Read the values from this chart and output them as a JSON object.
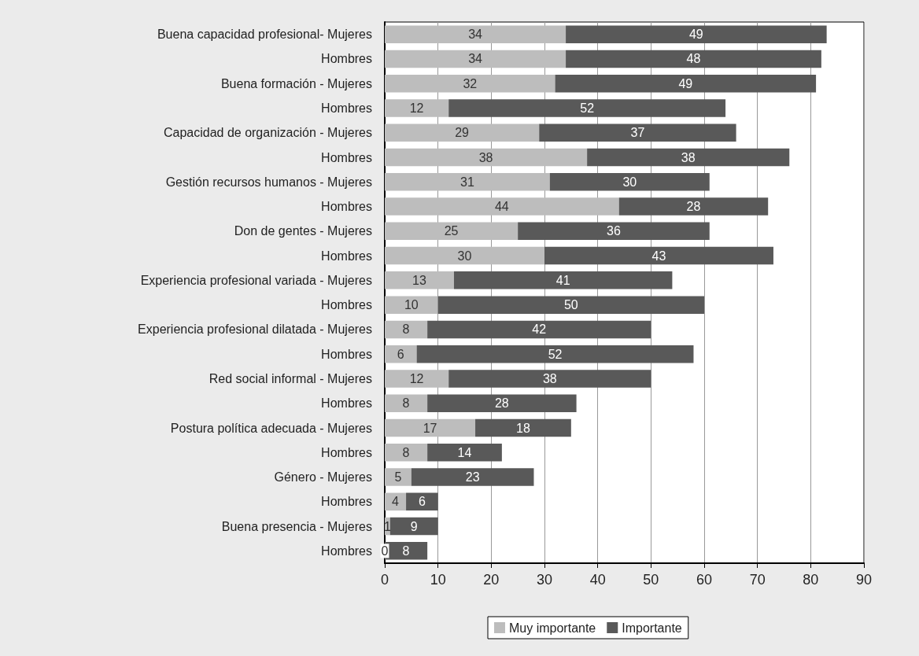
{
  "chart_data": {
    "type": "bar",
    "orientation": "horizontal",
    "stacked": true,
    "data_labels": true,
    "grid": "x",
    "legend": "bottom",
    "categories": [
      "Buena capacidad profesional- Mujeres",
      "Hombres",
      "Buena formación - Mujeres",
      "Hombres",
      "Capacidad de organización - Mujeres",
      "Hombres",
      "Gestión recursos humanos - Mujeres",
      "Hombres",
      "Don de gentes - Mujeres",
      "Hombres",
      "Experiencia profesional variada - Mujeres",
      "Hombres",
      "Experiencia profesional dilatada - Mujeres",
      "Hombres",
      "Red social informal - Mujeres",
      "Hombres",
      "Postura política adecuada - Mujeres",
      "Hombres",
      "Género - Mujeres",
      "Hombres",
      "Buena presencia - Mujeres",
      "Hombres"
    ],
    "xlim": [
      0,
      90
    ],
    "xticks": [
      0,
      10,
      20,
      30,
      40,
      50,
      60,
      70,
      80,
      90
    ],
    "series": [
      {
        "name": "Muy importante",
        "color": "#bdbdbd",
        "values": [
          34,
          34,
          32,
          12,
          29,
          38,
          31,
          44,
          25,
          30,
          13,
          10,
          8,
          6,
          12,
          8,
          17,
          8,
          5,
          4,
          1,
          0
        ]
      },
      {
        "name": "Importante",
        "color": "#595959",
        "values": [
          49,
          48,
          49,
          52,
          37,
          38,
          30,
          28,
          36,
          43,
          41,
          50,
          42,
          52,
          38,
          28,
          18,
          14,
          23,
          6,
          9,
          8
        ]
      }
    ]
  }
}
